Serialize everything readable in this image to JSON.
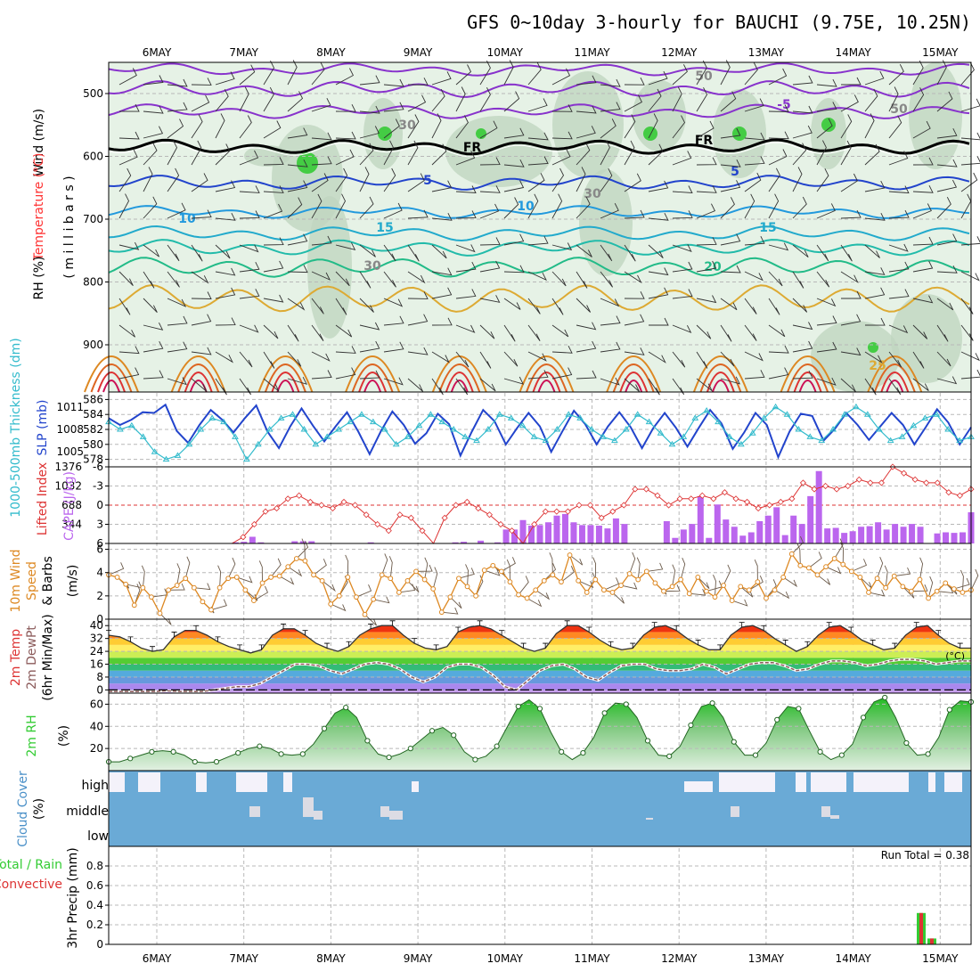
{
  "title": "GFS 0~10day 3-hourly for BAUCHI (9.75E, 10.25N)",
  "dates": [
    "6MAY",
    "7MAY",
    "8MAY",
    "9MAY",
    "10MAY",
    "11MAY",
    "12MAY",
    "13MAY",
    "14MAY",
    "15MAY"
  ],
  "colors": {
    "rh": "#33cc33",
    "temp": "#ff3333",
    "purple": "#aa55ee",
    "blue": "#2244cc",
    "cyan": "#33bbcc",
    "orange": "#dd8822",
    "cloud": "#6aaad6",
    "cloud_clear": "#f4f2fa"
  },
  "panel1": {
    "label_wind": "Wind (m/s)",
    "label_temp": "Temperature (°C)",
    "label_rh": "RH (%)",
    "label_mb": "( m i l l i b a r s )",
    "yticks": [
      "500",
      "600",
      "700",
      "800",
      "900"
    ],
    "contour_labels": {
      "fr": "FR",
      "t_m5": "-5",
      "t_5": "5",
      "t_10": "10",
      "t_15": "15",
      "t_20": "20",
      "t_25": "25",
      "rh_30": "30",
      "rh_50": "50"
    }
  },
  "panel2": {
    "label_thick": "1000-500mb Thickness (dm)",
    "label_slp": "SLP (mb)",
    "yticks_left": [
      "586",
      "584",
      "582",
      "580",
      "578"
    ],
    "yticks_right": [
      "1011",
      "1008",
      "1005"
    ]
  },
  "panel3": {
    "label_li": "Lifted Index",
    "label_cape": "CAPE (J/kg)",
    "yticks_li": [
      "-6",
      "-3",
      "0",
      "3",
      "6"
    ],
    "yticks_cape": [
      "1376",
      "1032",
      "688",
      "344"
    ]
  },
  "panel4": {
    "label": "10m Wind Speed & Barbs",
    "label_wind": "10m Wind",
    "label_speed": "Speed",
    "label_barbs": "& Barbs",
    "unit": "(m/s)",
    "yticks": [
      "6",
      "4",
      "2",
      "0"
    ]
  },
  "panel5": {
    "label_temp": "2m Temp",
    "label_dew": "2m DewPt",
    "label_minmax": "(6hr Min/Max)",
    "unit": "(°C)",
    "yticks": [
      "40",
      "32",
      "24",
      "16",
      "8",
      "0"
    ]
  },
  "panel6": {
    "label": "2m RH",
    "unit": "(%)",
    "yticks": [
      "60",
      "40",
      "20"
    ]
  },
  "panel7": {
    "label": "Cloud Cover",
    "unit": "(%)",
    "levels": [
      "high",
      "middle",
      "low"
    ]
  },
  "panel8": {
    "label_precip": "3hr Precip (mm)",
    "label_total_rain": "Total / Rain",
    "label_convective": "Convective",
    "run_total": "Run Total = 0.38",
    "yticks": [
      "0.8",
      "0.6",
      "0.4",
      "0.2",
      "0"
    ]
  },
  "chart_data": [
    {
      "type": "line",
      "title": "1000-500mb Thickness (dm) and SLP (mb)",
      "x_unit": "days from 5 May 12Z, 3-hourly",
      "series": [
        {
          "name": "SLP (mb)",
          "color": "#2244cc",
          "values": [
            1009.5,
            1008.6,
            1009.3,
            1010.3,
            1010.2,
            1011.3,
            1007.8,
            1006.2,
            1008.6,
            1010.6,
            1009.3,
            1007.6,
            1009.5,
            1011.2,
            1007.7,
            1005.5,
            1008.4,
            1010.8,
            1008.5,
            1006.4,
            1008.4,
            1010.3,
            1007.7,
            1004.7,
            1007.8,
            1010.4,
            1008.6,
            1006.1,
            1007.5,
            1010.1,
            1008.7,
            1004.5,
            1007.7,
            1010.6,
            1009.1,
            1006.0,
            1008.2,
            1010.2,
            1008.4,
            1005.0,
            1007.8,
            1010.5,
            1008.7,
            1006.0,
            1008.4,
            1010.3,
            1008.3,
            1005.5,
            1008.2,
            1010.2,
            1008.2,
            1005.7,
            1008.2,
            1010.6,
            1008.8,
            1005.4,
            1007.6,
            1010.2,
            1008.6,
            1004.3,
            1007.7,
            1010.1,
            1009.8,
            1006.5,
            1008.1,
            1010.2,
            1008.6,
            1006.6,
            1008.4,
            1010.2,
            1008.6,
            1006.0,
            1008.3,
            1010.7,
            1008.9,
            1006.0,
            1008.3
          ]
        },
        {
          "name": "1000-500mb Thickness (dm)",
          "color": "#33bbcc",
          "values": [
            583,
            582,
            582.5,
            581,
            579,
            578,
            578.5,
            580,
            582,
            583.5,
            583,
            581,
            578,
            580,
            582,
            583.5,
            584,
            582,
            580,
            581,
            582,
            583,
            584,
            583,
            582,
            580,
            581,
            582.5,
            584,
            583,
            582,
            581,
            580.5,
            582,
            584,
            583.5,
            582.5,
            581,
            580.5,
            582,
            584,
            583.5,
            582,
            581,
            580.5,
            582,
            584,
            583,
            581.5,
            580,
            581,
            583.5,
            584.5,
            583,
            581,
            580,
            581.5,
            583.5,
            585,
            584,
            582,
            581,
            580.5,
            582,
            584,
            585,
            584,
            582,
            580.5,
            581,
            582.5,
            583.5,
            584,
            582,
            580.5,
            581
          ]
        }
      ],
      "ylim_left": [
        577,
        587
      ],
      "ylim_right": [
        1003,
        1013
      ]
    },
    {
      "type": "bar",
      "title": "Lifted Index and CAPE (J/kg)",
      "series": [
        {
          "name": "Lifted Index",
          "color": "#dd3333",
          "values": [
            6,
            6,
            6,
            6,
            6,
            6,
            6,
            6,
            6,
            6,
            6,
            6,
            5,
            3,
            1,
            0.5,
            -1,
            -1.5,
            -0.5,
            0,
            0.5,
            -0.5,
            0,
            1.5,
            3,
            4,
            1.5,
            2,
            4,
            6,
            2,
            0,
            -0.5,
            0.5,
            1.5,
            3,
            4,
            6,
            3,
            1,
            1,
            1,
            0,
            0,
            2,
            1,
            0,
            -2.5,
            -2.5,
            -1.5,
            0,
            -1,
            -1,
            -1.5,
            -1,
            -2,
            -1,
            -0.5,
            0.5,
            0,
            -0.5,
            -1,
            -3.5,
            -2.5,
            -3,
            -2.5,
            -3,
            -4,
            -3.5,
            -3.5,
            -6,
            -5,
            -4,
            -3.5,
            -3.5,
            -2,
            -1.5,
            -2.5
          ]
        },
        {
          "name": "CAPE (J/kg)",
          "color": "#bb66ee",
          "values": [
            0,
            0,
            0,
            0,
            0,
            0,
            0,
            0,
            0,
            0,
            0,
            0,
            0,
            0,
            0,
            20,
            30,
            120,
            20,
            0,
            0,
            0,
            40,
            40,
            40,
            0,
            0,
            0,
            0,
            0,
            0,
            20,
            0,
            0,
            0,
            0,
            0,
            0,
            0,
            0,
            0,
            20,
            30,
            0,
            50,
            0,
            20,
            250,
            250,
            420,
            320,
            330,
            380,
            500,
            530,
            380,
            330,
            330,
            320,
            270,
            450,
            350,
            0,
            0,
            0,
            0,
            400,
            100,
            250,
            350,
            850,
            100,
            700,
            430,
            300,
            140,
            200,
            400,
            500,
            650,
            150,
            500,
            350,
            850,
            1300,
            270,
            280,
            190,
            220,
            300,
            310,
            380,
            250,
            350,
            300,
            350,
            300,
            0,
            180,
            200,
            190,
            200,
            560
          ]
        }
      ],
      "ylim_li": [
        -6,
        6
      ],
      "ylim_cape": [
        0,
        1376
      ]
    },
    {
      "type": "line",
      "title": "10m Wind Speed & Barbs (m/s)",
      "series": [
        {
          "name": "10m Wind Speed",
          "color": "#dd8822",
          "values": [
            3.8,
            3.6,
            3.0,
            1.2,
            2.7,
            1.9,
            0.5,
            2.5,
            2.9,
            3.5,
            2.7,
            1.5,
            0.8,
            2.7,
            3.5,
            3.6,
            2.5,
            1.6,
            3.1,
            3.6,
            3.7,
            4.5,
            5.2,
            5.0,
            3.8,
            3.3,
            1.3,
            2.0,
            3.6,
            1.9,
            0.4,
            1.7,
            3.8,
            3.5,
            2.3,
            3.3,
            4.1,
            3.4,
            2.6,
            0.6,
            1.9,
            3.5,
            2.8,
            2.0,
            4.2,
            4.6,
            4.1,
            3.2,
            2.1,
            1.8,
            2.5,
            3.3,
            3.8,
            3.2,
            5.5,
            3.3,
            2.3,
            3.4,
            2.5,
            2.3,
            2.9,
            3.9,
            3.4,
            4.1,
            3.1,
            2.4,
            2.8,
            3.4,
            2.2,
            3.6,
            2.4,
            1.9,
            2.9,
            1.6,
            2.8,
            2.5,
            3.2,
            1.8,
            2.5,
            3.6,
            5.6,
            4.6,
            4.4,
            3.8,
            4.5,
            5.2,
            4.7,
            4.1,
            3.6,
            2.3,
            3.5,
            2.7,
            3.7,
            2.8,
            2.4,
            3.4,
            1.8,
            2.4,
            3.1,
            2.6,
            2.3,
            2.5
          ]
        }
      ],
      "ylim": [
        0,
        6.5
      ]
    },
    {
      "type": "line",
      "title": "2m Temp and 2m DewPt (°C)",
      "series": [
        {
          "name": "2m Temp",
          "color": "#000000",
          "values": [
            34,
            33,
            30,
            26,
            24,
            25,
            33,
            37,
            37,
            34,
            30,
            27,
            25,
            23,
            25,
            34,
            38,
            38,
            34,
            29,
            26,
            24,
            27,
            34,
            38,
            40,
            40,
            34,
            29,
            26,
            25,
            27,
            36,
            39,
            40,
            38,
            34,
            30,
            26,
            24,
            26,
            35,
            40,
            40,
            36,
            31,
            27,
            25,
            26,
            34,
            39,
            40,
            37,
            32,
            28,
            25,
            25,
            34,
            39,
            40,
            37,
            32,
            28,
            24,
            27,
            34,
            39,
            40,
            36,
            31,
            28,
            25,
            26,
            34,
            39,
            40,
            34,
            29,
            26,
            26
          ]
        },
        {
          "name": "2m DewPt",
          "color": "#8b5a5a",
          "values": [
            -1,
            -1,
            -1,
            -1,
            -1,
            -0.5,
            -1,
            -1,
            -1,
            0,
            1,
            2,
            2,
            4,
            8,
            12,
            16,
            16,
            15,
            12,
            10,
            13,
            16,
            17,
            16,
            13,
            8,
            5,
            8,
            14,
            16,
            16,
            14,
            9,
            2,
            0,
            6,
            12,
            15,
            16,
            13,
            8,
            6,
            11,
            15,
            16,
            16,
            13,
            12,
            12,
            13,
            16,
            14,
            10,
            13,
            16,
            17,
            17,
            15,
            12,
            13,
            16,
            18,
            18,
            17,
            15,
            16,
            18,
            19,
            19,
            18,
            16,
            17,
            18,
            18
          ]
        }
      ],
      "ylim": [
        -2,
        44
      ]
    },
    {
      "type": "area",
      "title": "2m RH (%)",
      "series": [
        {
          "name": "2m RH",
          "color": "#33cc33",
          "values": [
            8,
            8,
            11,
            14,
            17,
            18,
            17,
            14,
            8,
            7,
            8,
            12,
            16,
            20,
            22,
            20,
            15,
            14,
            15,
            24,
            38,
            52,
            57,
            48,
            27,
            15,
            12,
            15,
            20,
            28,
            36,
            39,
            32,
            17,
            10,
            13,
            22,
            40,
            58,
            64,
            56,
            35,
            17,
            10,
            16,
            30,
            52,
            61,
            60,
            48,
            27,
            14,
            13,
            22,
            41,
            58,
            61,
            48,
            26,
            14,
            14,
            25,
            46,
            58,
            56,
            36,
            17,
            10,
            14,
            24,
            48,
            62,
            66,
            48,
            25,
            14,
            15,
            30,
            55,
            63,
            62
          ]
        }
      ],
      "ylim": [
        0,
        70
      ]
    },
    {
      "type": "bar",
      "title": "Cloud Cover (%)",
      "categories": [
        "high",
        "middle",
        "low"
      ]
    },
    {
      "type": "bar",
      "title": "3hr Precip (mm)",
      "series": [
        {
          "name": "Total / Rain",
          "color": "#33cc33",
          "values": [
            0.32,
            0.06
          ]
        },
        {
          "name": "Convective",
          "color": "#dd3333",
          "values": [
            0.32,
            0.06
          ]
        }
      ],
      "ylim": [
        0,
        1.0
      ],
      "run_total": 0.38
    }
  ]
}
